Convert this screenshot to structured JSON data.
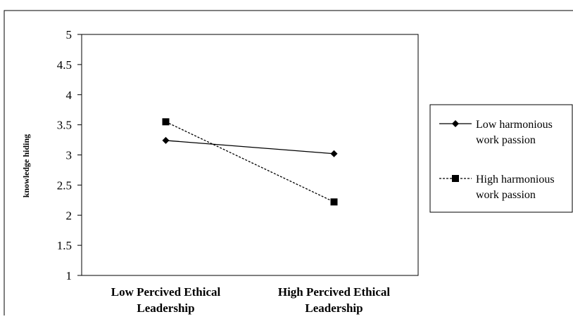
{
  "chart_data": {
    "type": "line",
    "ylabel": "knowledge hiding",
    "ylim": [
      1,
      5
    ],
    "y_ticks": [
      "1",
      "1.5",
      "2",
      "2.5",
      "3",
      "3.5",
      "4",
      "4.5",
      "5"
    ],
    "categories": [
      [
        "Low Percived Ethical",
        "Leadership"
      ],
      [
        "High Percived Ethical",
        "Leadership"
      ]
    ],
    "series": [
      {
        "name": [
          "Low harmonious",
          "work passion"
        ],
        "values": [
          3.24,
          3.02
        ],
        "marker": "diamond",
        "line": "solid"
      },
      {
        "name": [
          "High harmonious",
          "work passion"
        ],
        "values": [
          3.55,
          2.22
        ],
        "marker": "square",
        "line": "dashed"
      }
    ],
    "grid": false,
    "legend_position": "right"
  }
}
